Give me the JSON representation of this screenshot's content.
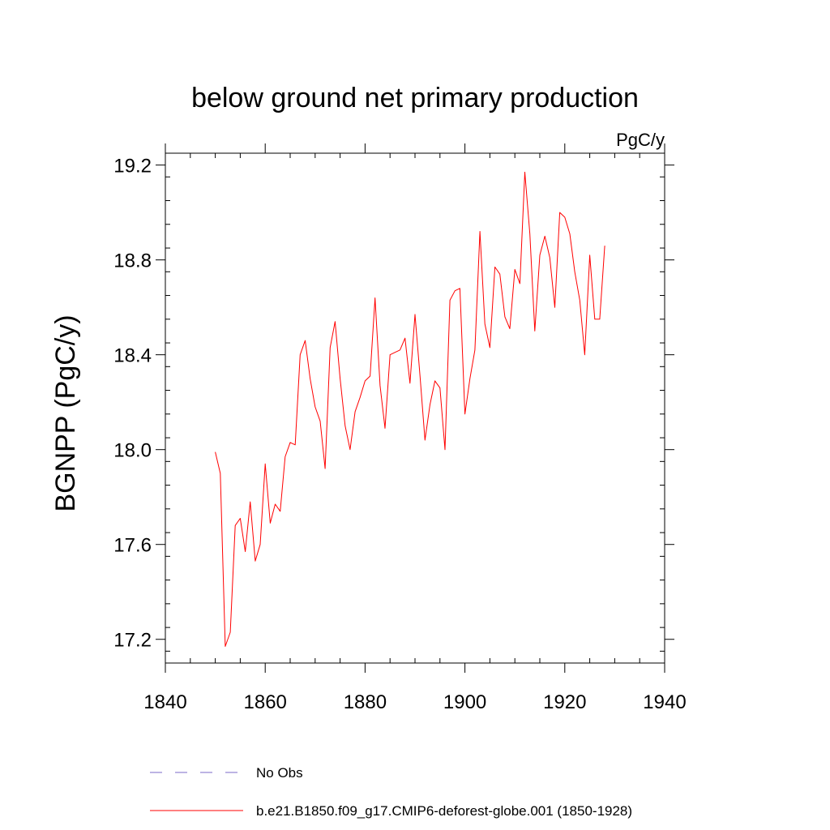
{
  "chart_data": {
    "type": "line",
    "title": "below ground net primary production",
    "units": "PgC/y",
    "ylabel": "BGNPP  (PgC/y)",
    "xlabel": "",
    "xlim": [
      1840,
      1940
    ],
    "ylim": [
      17.1,
      19.25
    ],
    "x_ticks": [
      1840,
      1860,
      1880,
      1900,
      1920,
      1940
    ],
    "x_tick_labels": [
      "1840",
      "1860",
      "1880",
      "1900",
      "1920",
      "1940"
    ],
    "y_ticks": [
      17.2,
      17.6,
      18.0,
      18.4,
      18.8,
      19.2
    ],
    "y_tick_labels": [
      "17.2",
      "17.6",
      "18.0",
      "18.4",
      "18.8",
      "19.2"
    ],
    "legend": [
      {
        "label": "No Obs",
        "color": "#7b68c8",
        "style": "dashed"
      },
      {
        "label": "b.e21.B1850.f09_g17.CMIP6-deforest-globe.001 (1850-1928)",
        "color": "#ff0000",
        "style": "solid"
      }
    ],
    "series": [
      {
        "name": "b.e21.B1850.f09_g17.CMIP6-deforest-globe.001 (1850-1928)",
        "color": "#ff0000",
        "x": [
          1850,
          1851,
          1852,
          1853,
          1854,
          1855,
          1856,
          1857,
          1858,
          1859,
          1860,
          1861,
          1862,
          1863,
          1864,
          1865,
          1866,
          1867,
          1868,
          1869,
          1870,
          1871,
          1872,
          1873,
          1874,
          1875,
          1876,
          1877,
          1878,
          1879,
          1880,
          1881,
          1882,
          1883,
          1884,
          1885,
          1886,
          1887,
          1888,
          1889,
          1890,
          1891,
          1892,
          1893,
          1894,
          1895,
          1896,
          1897,
          1898,
          1899,
          1900,
          1901,
          1902,
          1903,
          1904,
          1905,
          1906,
          1907,
          1908,
          1909,
          1910,
          1911,
          1912,
          1913,
          1914,
          1915,
          1916,
          1917,
          1918,
          1919,
          1920,
          1921,
          1922,
          1923,
          1924,
          1925,
          1926,
          1927,
          1928
        ],
        "values": [
          17.99,
          17.9,
          17.17,
          17.23,
          17.68,
          17.71,
          17.57,
          17.78,
          17.53,
          17.6,
          17.94,
          17.69,
          17.77,
          17.74,
          17.97,
          18.03,
          18.02,
          18.4,
          18.46,
          18.3,
          18.18,
          18.12,
          17.92,
          18.43,
          18.54,
          18.3,
          18.1,
          18.0,
          18.16,
          18.22,
          18.29,
          18.31,
          18.64,
          18.27,
          18.09,
          18.4,
          18.41,
          18.42,
          18.47,
          18.28,
          18.57,
          18.31,
          18.04,
          18.19,
          18.29,
          18.26,
          18.0,
          18.63,
          18.67,
          18.68,
          18.15,
          18.3,
          18.42,
          18.92,
          18.53,
          18.43,
          18.77,
          18.74,
          18.56,
          18.51,
          18.76,
          18.7,
          19.17,
          18.91,
          18.5,
          18.82,
          18.9,
          18.81,
          18.6,
          19.0,
          18.98,
          18.91,
          18.75,
          18.63,
          18.4,
          18.82,
          18.55,
          18.55,
          18.86
        ]
      }
    ]
  }
}
